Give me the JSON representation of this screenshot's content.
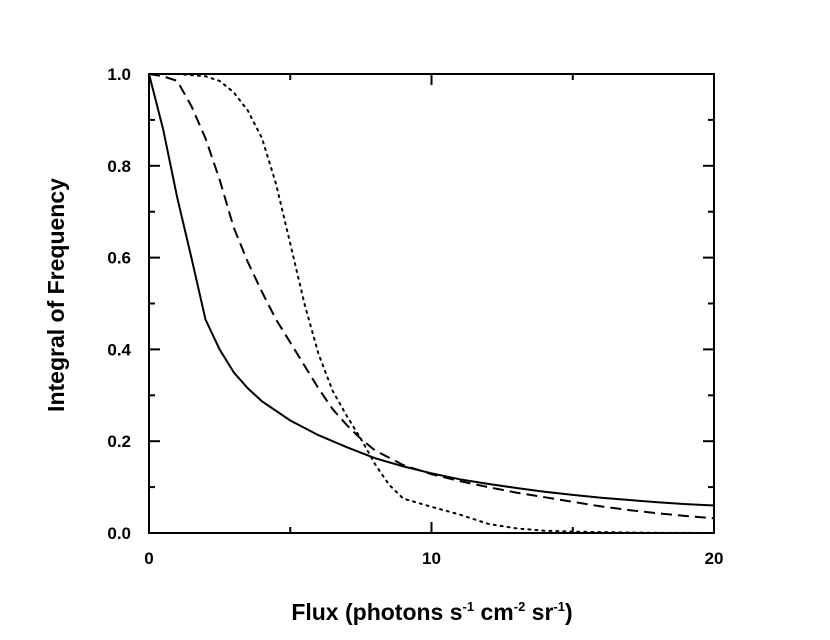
{
  "chart_data": {
    "type": "line",
    "title": "",
    "xlabel": {
      "parts": [
        {
          "text": "Flux (photons s",
          "sup": false
        },
        {
          "text": "-1",
          "sup": true
        },
        {
          "text": " cm",
          "sup": false
        },
        {
          "text": "-2",
          "sup": true
        },
        {
          "text": " sr",
          "sup": false
        },
        {
          "text": "-1",
          "sup": true
        },
        {
          "text": ")",
          "sup": false
        }
      ]
    },
    "ylabel": "Integral of Frequency",
    "xlim": [
      0,
      20
    ],
    "ylim": [
      0,
      1
    ],
    "x_ticks": [
      {
        "value": 0,
        "label": "0"
      },
      {
        "value": 10,
        "label": "10"
      },
      {
        "value": 20,
        "label": "20"
      }
    ],
    "x_minor_ticks": [
      5,
      15
    ],
    "y_ticks": [
      {
        "value": 0.0,
        "label": "0.0"
      },
      {
        "value": 0.2,
        "label": "0.2"
      },
      {
        "value": 0.4,
        "label": "0.4"
      },
      {
        "value": 0.6,
        "label": "0.6"
      },
      {
        "value": 0.8,
        "label": "0.8"
      },
      {
        "value": 1.0,
        "label": "1.0"
      }
    ],
    "y_minor_ticks": [
      0.1,
      0.3,
      0.5,
      0.7,
      0.9
    ],
    "grid": false,
    "legend": "none",
    "series": [
      {
        "style": "solid",
        "color": "#000000",
        "points": [
          [
            0,
            1.0
          ],
          [
            0.5,
            0.88
          ],
          [
            1,
            0.73
          ],
          [
            1.5,
            0.6
          ],
          [
            2,
            0.465
          ],
          [
            2.5,
            0.4
          ],
          [
            3,
            0.35
          ],
          [
            3.5,
            0.315
          ],
          [
            4,
            0.287
          ],
          [
            5,
            0.245
          ],
          [
            6,
            0.213
          ],
          [
            7,
            0.187
          ],
          [
            8,
            0.163
          ],
          [
            9,
            0.145
          ],
          [
            10,
            0.13
          ],
          [
            11,
            0.117
          ],
          [
            12,
            0.107
          ],
          [
            13,
            0.098
          ],
          [
            14,
            0.09
          ],
          [
            15,
            0.083
          ],
          [
            16,
            0.077
          ],
          [
            17,
            0.072
          ],
          [
            18,
            0.067
          ],
          [
            19,
            0.063
          ],
          [
            20,
            0.06
          ]
        ]
      },
      {
        "style": "dashed",
        "color": "#000000",
        "points": [
          [
            0,
            1.0
          ],
          [
            0.5,
            0.995
          ],
          [
            1,
            0.985
          ],
          [
            1.5,
            0.93
          ],
          [
            2,
            0.86
          ],
          [
            2.5,
            0.77
          ],
          [
            3,
            0.665
          ],
          [
            3.5,
            0.59
          ],
          [
            4,
            0.525
          ],
          [
            4.5,
            0.465
          ],
          [
            5,
            0.415
          ],
          [
            5.5,
            0.365
          ],
          [
            6,
            0.315
          ],
          [
            6.5,
            0.27
          ],
          [
            7,
            0.235
          ],
          [
            7.5,
            0.205
          ],
          [
            8,
            0.18
          ],
          [
            9,
            0.148
          ],
          [
            10,
            0.128
          ],
          [
            11,
            0.113
          ],
          [
            12,
            0.1
          ],
          [
            13,
            0.088
          ],
          [
            14,
            0.078
          ],
          [
            15,
            0.068
          ],
          [
            16,
            0.058
          ],
          [
            17,
            0.05
          ],
          [
            18,
            0.043
          ],
          [
            19,
            0.037
          ],
          [
            20,
            0.032
          ]
        ]
      },
      {
        "style": "dotted",
        "color": "#000000",
        "points": [
          [
            0,
            1.0
          ],
          [
            1,
            1.0
          ],
          [
            2,
            0.995
          ],
          [
            2.5,
            0.985
          ],
          [
            3,
            0.96
          ],
          [
            3.5,
            0.92
          ],
          [
            4,
            0.86
          ],
          [
            4.5,
            0.76
          ],
          [
            5,
            0.63
          ],
          [
            5.5,
            0.5
          ],
          [
            6,
            0.39
          ],
          [
            6.5,
            0.31
          ],
          [
            7,
            0.255
          ],
          [
            7.5,
            0.205
          ],
          [
            8,
            0.15
          ],
          [
            8.5,
            0.105
          ],
          [
            9,
            0.075
          ],
          [
            10,
            0.057
          ],
          [
            11,
            0.04
          ],
          [
            12,
            0.02
          ],
          [
            13,
            0.01
          ],
          [
            14,
            0.005
          ],
          [
            15,
            0.003
          ],
          [
            16,
            0.002
          ],
          [
            17,
            0.001
          ],
          [
            18,
            0.0005
          ],
          [
            20,
            0.0
          ]
        ]
      }
    ]
  }
}
